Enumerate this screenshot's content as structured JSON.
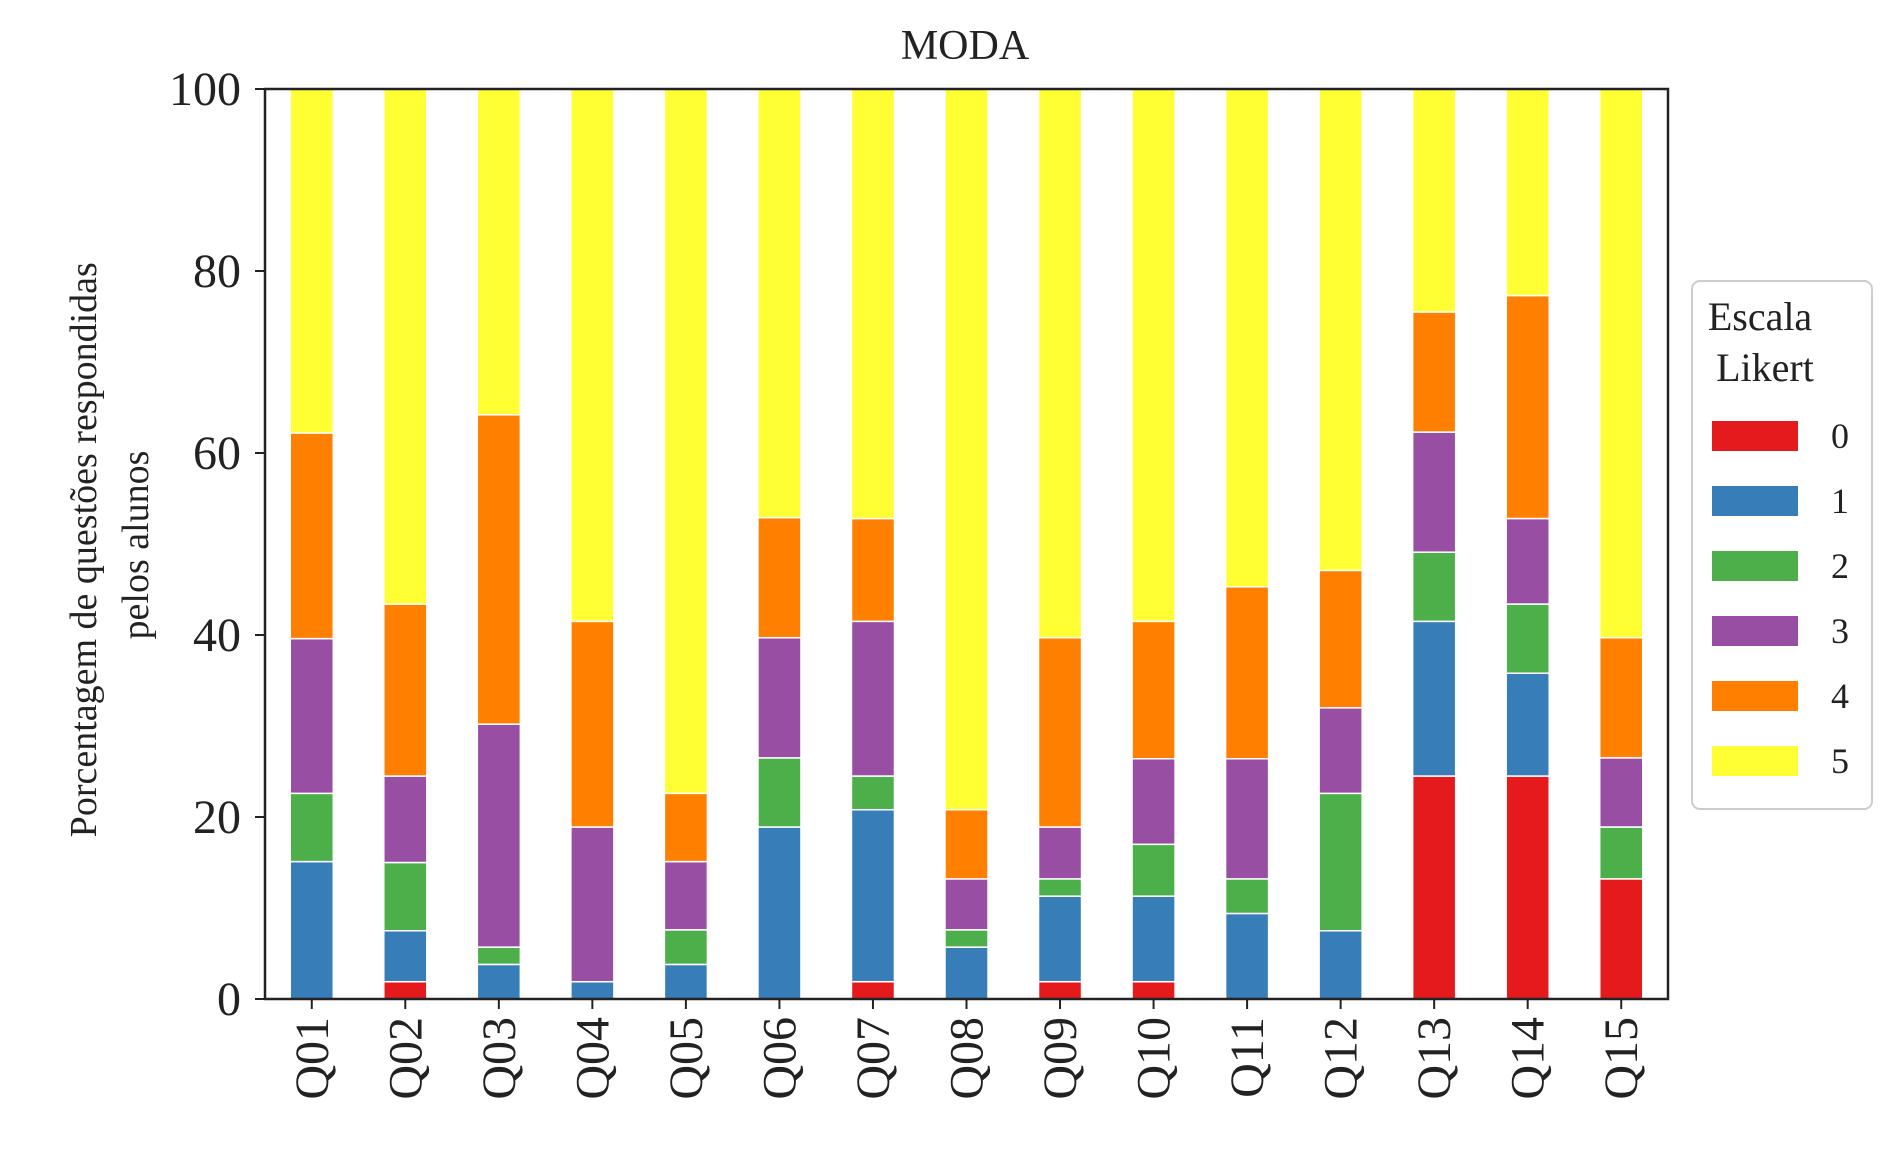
{
  "chart_data": {
    "type": "bar",
    "stacked": true,
    "title": "MODA",
    "xlabel": "",
    "ylabel_lines": [
      "Porcentagem de questões respondidas",
      "pelos alunos"
    ],
    "ylim": [
      0,
      100
    ],
    "yticks": [
      "0",
      "20",
      "40",
      "60",
      "80",
      "100"
    ],
    "grid": false,
    "categories": [
      "Q01",
      "Q02",
      "Q03",
      "Q04",
      "Q05",
      "Q06",
      "Q07",
      "Q08",
      "Q09",
      "Q10",
      "Q11",
      "Q12",
      "Q13",
      "Q14",
      "Q15"
    ],
    "legend": {
      "title_lines": [
        "Escala",
        "Likert"
      ],
      "placement": "right"
    },
    "series": [
      {
        "name": "0",
        "color": "#e41a1c",
        "values": [
          0,
          1.9,
          0,
          0,
          0,
          0,
          1.9,
          0,
          1.9,
          1.9,
          0,
          0,
          24.5,
          24.5,
          13.2
        ]
      },
      {
        "name": "1",
        "color": "#377eb8",
        "values": [
          15.1,
          5.6,
          3.8,
          1.9,
          3.8,
          18.9,
          18.9,
          5.7,
          9.4,
          9.4,
          9.4,
          7.5,
          17.0,
          11.3,
          0
        ]
      },
      {
        "name": "2",
        "color": "#4daf4a",
        "values": [
          7.5,
          7.5,
          1.9,
          0,
          3.8,
          7.6,
          3.7,
          1.9,
          1.9,
          5.7,
          3.8,
          15.1,
          7.6,
          7.6,
          5.7
        ]
      },
      {
        "name": "3",
        "color": "#984ea3",
        "values": [
          17.0,
          9.5,
          24.5,
          17.0,
          7.5,
          13.2,
          17.0,
          5.6,
          5.7,
          9.4,
          13.2,
          9.4,
          13.2,
          9.4,
          7.6
        ]
      },
      {
        "name": "4",
        "color": "#ff7f00",
        "values": [
          22.6,
          18.9,
          34.0,
          22.6,
          7.5,
          13.2,
          11.3,
          7.6,
          20.8,
          15.1,
          18.9,
          15.1,
          13.2,
          24.5,
          13.2
        ]
      },
      {
        "name": "5",
        "color": "#ffff33",
        "values": [
          37.8,
          56.6,
          35.8,
          58.5,
          77.4,
          47.1,
          47.2,
          79.2,
          60.3,
          58.5,
          54.7,
          52.9,
          24.5,
          22.7,
          60.3
        ]
      }
    ]
  }
}
